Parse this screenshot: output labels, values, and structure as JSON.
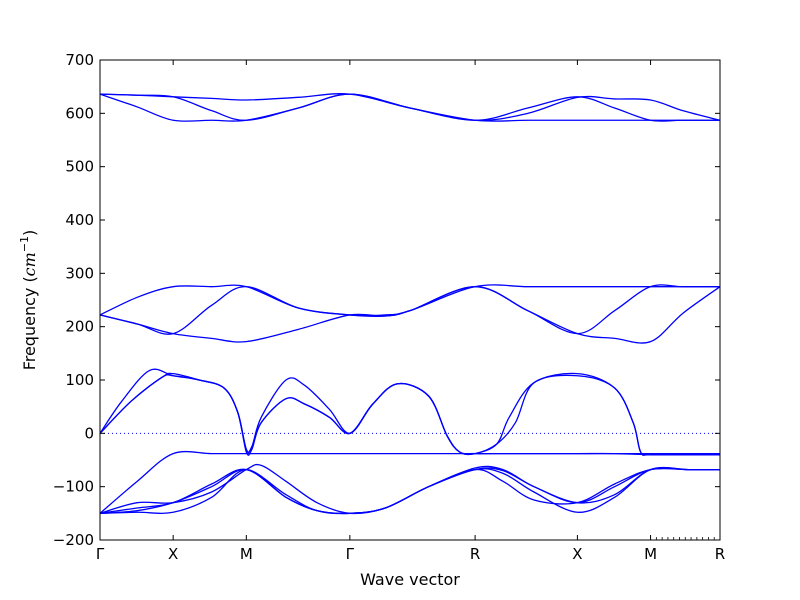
{
  "chart_data": {
    "type": "line",
    "title": "",
    "xlabel": "Wave vector",
    "ylabel": "Frequency (cm⁻¹)",
    "ylabel_parts": {
      "prefix": "Frequency (",
      "unit": "cm",
      "exponent": "−1",
      "suffix": ")"
    },
    "ylim": [
      -200,
      700
    ],
    "yticks": [
      -200,
      -100,
      0,
      100,
      200,
      300,
      400,
      500,
      600,
      700
    ],
    "xlim": [
      0,
      1
    ],
    "xticks": [
      {
        "label": "Γ",
        "pos": 0.0
      },
      {
        "label": "X",
        "pos": 0.118
      },
      {
        "label": "M",
        "pos": 0.236
      },
      {
        "label": "Γ",
        "pos": 0.403
      },
      {
        "label": "R",
        "pos": 0.605
      },
      {
        "label": "X",
        "pos": 0.77
      },
      {
        "label": "M",
        "pos": 0.888
      },
      {
        "label": "R",
        "pos": 1.0
      }
    ],
    "zero_line": {
      "y": 0,
      "style": "dotted"
    },
    "grid": false,
    "line_color": "#0000ff",
    "series": [
      {
        "x": [
          0.0,
          0.06,
          0.118,
          0.18,
          0.236,
          0.32,
          0.403,
          0.5,
          0.605,
          0.69,
          0.77,
          0.83,
          0.888,
          0.94,
          1.0
        ],
        "y": [
          636,
          634,
          631,
          628,
          625,
          630,
          636,
          610,
          587,
          600,
          630,
          627,
          625,
          605,
          587
        ]
      },
      {
        "x": [
          0.0,
          0.06,
          0.118,
          0.18,
          0.236,
          0.32,
          0.403,
          0.5,
          0.605,
          0.69,
          0.77,
          0.83,
          0.888,
          0.94,
          1.0
        ],
        "y": [
          636,
          612,
          587,
          587,
          587,
          610,
          636,
          610,
          587,
          587,
          587,
          587,
          587,
          587,
          587
        ]
      },
      {
        "x": [
          0.0,
          0.06,
          0.118,
          0.18,
          0.236,
          0.32,
          0.403,
          0.5,
          0.605,
          0.69,
          0.77,
          0.83,
          0.888,
          0.94,
          1.0
        ],
        "y": [
          636,
          634,
          631,
          605,
          587,
          610,
          636,
          610,
          587,
          610,
          631,
          610,
          587,
          587,
          587
        ]
      },
      {
        "x": [
          0.0,
          0.06,
          0.118,
          0.18,
          0.236,
          0.32,
          0.403,
          0.46,
          0.5,
          0.605,
          0.69,
          0.77,
          0.83,
          0.888,
          0.94,
          1.0
        ],
        "y": [
          222,
          255,
          275,
          275,
          275,
          235,
          222,
          222,
          230,
          275,
          275,
          275,
          275,
          275,
          275,
          275
        ]
      },
      {
        "x": [
          0.0,
          0.06,
          0.118,
          0.18,
          0.236,
          0.32,
          0.403,
          0.46,
          0.5,
          0.605,
          0.69,
          0.77,
          0.83,
          0.888,
          0.94,
          1.0
        ],
        "y": [
          222,
          205,
          187,
          240,
          275,
          235,
          222,
          220,
          230,
          275,
          230,
          187,
          230,
          275,
          275,
          275
        ]
      },
      {
        "x": [
          0.0,
          0.06,
          0.118,
          0.18,
          0.236,
          0.32,
          0.403,
          0.46,
          0.5,
          0.605,
          0.69,
          0.77,
          0.83,
          0.888,
          0.94,
          1.0
        ],
        "y": [
          222,
          205,
          187,
          178,
          172,
          195,
          222,
          220,
          230,
          275,
          230,
          187,
          178,
          172,
          225,
          275
        ]
      },
      {
        "x": [
          0.0,
          0.035,
          0.08,
          0.118,
          0.16,
          0.2,
          0.222,
          0.236,
          0.245,
          0.26,
          0.3,
          0.33,
          0.37,
          0.403,
          0.44,
          0.48,
          0.53,
          0.56,
          0.58,
          0.605,
          0.65,
          0.68,
          0.72,
          0.77,
          0.83,
          0.86,
          0.872,
          0.888,
          0.95,
          1.0
        ],
        "y": [
          0,
          60,
          118,
          108,
          100,
          85,
          40,
          -30,
          -25,
          30,
          100,
          90,
          45,
          0,
          55,
          93,
          70,
          -5,
          -35,
          -38,
          -38,
          -38,
          -38,
          -38,
          -38,
          -38,
          -38,
          -38,
          -38,
          -38
        ]
      },
      {
        "x": [
          0.0,
          0.05,
          0.1,
          0.118,
          0.16,
          0.2,
          0.222,
          0.236,
          0.245,
          0.26,
          0.3,
          0.33,
          0.37,
          0.403,
          0.44,
          0.48,
          0.53,
          0.56,
          0.58,
          0.605,
          0.64,
          0.66,
          0.7,
          0.77,
          0.83,
          0.86,
          0.872,
          0.888,
          0.95,
          1.0
        ],
        "y": [
          0,
          60,
          105,
          112,
          100,
          85,
          40,
          -30,
          -25,
          20,
          65,
          55,
          30,
          0,
          55,
          93,
          70,
          -5,
          -35,
          -38,
          -20,
          30,
          95,
          112,
          85,
          20,
          -35,
          -40,
          -40,
          -40
        ]
      },
      {
        "x": [
          0.0,
          0.05,
          0.1,
          0.118,
          0.16,
          0.2,
          0.222,
          0.236,
          0.245,
          0.26,
          0.3,
          0.33,
          0.37,
          0.403,
          0.44,
          0.48,
          0.53,
          0.56,
          0.58,
          0.605,
          0.64,
          0.67,
          0.7,
          0.77,
          0.83,
          0.86,
          0.872,
          0.888,
          0.95,
          1.0
        ],
        "y": [
          0,
          60,
          105,
          108,
          100,
          85,
          40,
          -35,
          -30,
          20,
          65,
          55,
          30,
          0,
          55,
          93,
          70,
          -5,
          -35,
          -38,
          -20,
          20,
          95,
          108,
          85,
          20,
          -35,
          -40,
          -40,
          -40
        ]
      },
      {
        "x": [
          0.0,
          0.06,
          0.118,
          0.18,
          0.236,
          0.3,
          0.35,
          0.403,
          0.46,
          0.53,
          0.605,
          0.65,
          0.7,
          0.77,
          0.83,
          0.888,
          0.95,
          1.0
        ],
        "y": [
          -150,
          -90,
          -38,
          -38,
          -38,
          -38,
          -38,
          -38,
          -38,
          -38,
          -38,
          -38,
          -38,
          -38,
          -38,
          -40,
          -40,
          -40
        ]
      },
      {
        "x": [
          0.0,
          0.06,
          0.118,
          0.18,
          0.236,
          0.3,
          0.35,
          0.403,
          0.46,
          0.53,
          0.605,
          0.65,
          0.7,
          0.77,
          0.83,
          0.888,
          0.95,
          1.0
        ],
        "y": [
          -150,
          -145,
          -130,
          -100,
          -68,
          -115,
          -145,
          -150,
          -140,
          -100,
          -68,
          -70,
          -100,
          -130,
          -100,
          -68,
          -68,
          -68
        ]
      },
      {
        "x": [
          0.0,
          0.06,
          0.118,
          0.18,
          0.236,
          0.26,
          0.3,
          0.35,
          0.403,
          0.46,
          0.53,
          0.605,
          0.65,
          0.7,
          0.77,
          0.83,
          0.888,
          0.95,
          1.0
        ],
        "y": [
          -150,
          -130,
          -130,
          -110,
          -68,
          -60,
          -90,
          -130,
          -150,
          -140,
          -100,
          -65,
          -68,
          -100,
          -130,
          -115,
          -68,
          -68,
          -68
        ]
      },
      {
        "x": [
          0.0,
          0.06,
          0.118,
          0.18,
          0.236,
          0.3,
          0.35,
          0.403,
          0.46,
          0.53,
          0.605,
          0.65,
          0.7,
          0.77,
          0.83,
          0.888,
          0.95,
          1.0
        ],
        "y": [
          -150,
          -148,
          -148,
          -120,
          -68,
          -120,
          -145,
          -150,
          -140,
          -100,
          -68,
          -75,
          -110,
          -148,
          -120,
          -68,
          -68,
          -68
        ]
      },
      {
        "x": [
          0.0,
          0.06,
          0.118,
          0.18,
          0.236,
          0.3,
          0.35,
          0.403,
          0.46,
          0.53,
          0.605,
          0.65,
          0.7,
          0.77,
          0.83,
          0.888,
          0.95,
          1.0
        ],
        "y": [
          -150,
          -140,
          -130,
          -95,
          -68,
          -120,
          -145,
          -150,
          -140,
          -100,
          -68,
          -90,
          -125,
          -130,
          -95,
          -68,
          -68,
          -68
        ]
      }
    ]
  }
}
